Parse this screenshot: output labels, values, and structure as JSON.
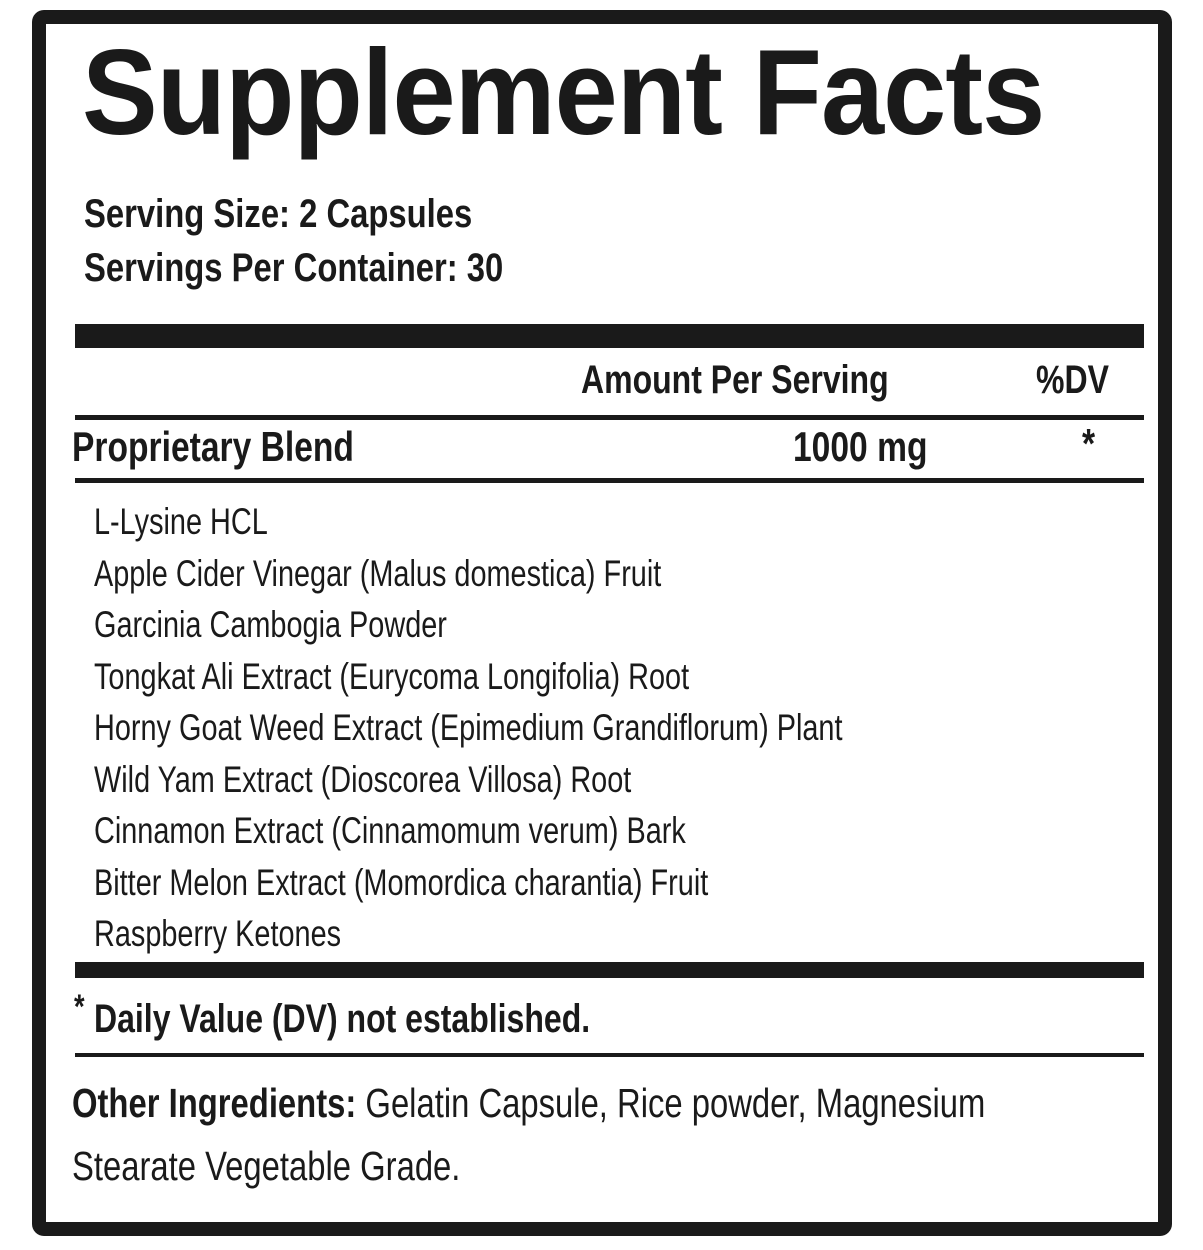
{
  "title": "Supplement Facts",
  "serving_size": "Serving Size: 2 Capsules",
  "servings_per_container": "Servings Per Container: 30",
  "header": {
    "amount": "Amount Per Serving",
    "dv": "%DV"
  },
  "blend": {
    "name": "Proprietary Blend",
    "amount": "1000 mg",
    "dv": "*"
  },
  "ingredients": [
    "L-Lysine HCL",
    "Apple Cider Vinegar (Malus domestica) Fruit",
    "Garcinia Cambogia Powder",
    "Tongkat Ali Extract (Eurycoma Longifolia) Root",
    "Horny Goat Weed Extract (Epimedium Grandiflorum) Plant",
    "Wild Yam Extract (Dioscorea Villosa) Root",
    "Cinnamon Extract (Cinnamomum verum) Bark",
    "Bitter Melon Extract (Momordica charantia) Fruit",
    "Raspberry Ketones"
  ],
  "footnote": {
    "mark": "*",
    "text": "Daily Value (DV) not established."
  },
  "other": {
    "label": "Other Ingredients:",
    "line1": "Gelatin Capsule, Rice powder, Magnesium",
    "line2": "Stearate Vegetable Grade."
  }
}
